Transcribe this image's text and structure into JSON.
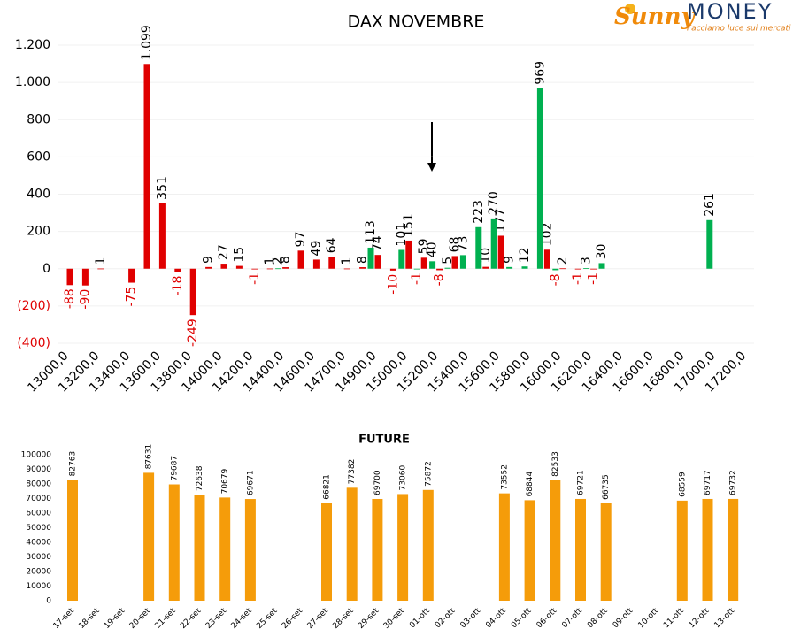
{
  "logo": {
    "brand": "Sunny",
    "name": "MONEY",
    "tagline": "Facciamo luce sui mercati"
  },
  "chart_data": [
    {
      "type": "bar",
      "title": "DAX NOVEMBRE",
      "categories": [
        "13000,0",
        null,
        "13200,0",
        null,
        "13400,0",
        null,
        "13600,0",
        null,
        "13800,0",
        null,
        "14000,0",
        null,
        "14200,0",
        null,
        "14400,0",
        null,
        "14600,0",
        null,
        "14700,0",
        null,
        "14900,0",
        null,
        "15000,0",
        null,
        "15200,0",
        null,
        "15400,0",
        null,
        "15600,0",
        null,
        "15800,0",
        null,
        "16000,0",
        null,
        "16200,0",
        null,
        "16400,0",
        null,
        "16600,0",
        null,
        "16800,0",
        null,
        "17000,0",
        null,
        "17200,0"
      ],
      "series": [
        {
          "color": "#e00000",
          "values": [
            -88,
            -90,
            1,
            null,
            -75,
            1099,
            351,
            -18,
            -249,
            9,
            27,
            15,
            -1,
            1,
            8,
            97,
            49,
            64,
            1,
            8,
            74,
            -10,
            151,
            59,
            -8,
            68,
            null,
            10,
            177,
            null,
            null,
            102,
            2,
            -1,
            -1,
            null,
            null,
            null,
            null,
            null,
            null,
            null,
            null,
            null,
            null
          ],
          "value_labels": [
            "-88",
            "-90",
            "1",
            null,
            "-75",
            "1.099",
            "351",
            "-18",
            "-249",
            "9",
            "27",
            "15",
            "-1",
            "1",
            "8",
            "97",
            "49",
            "64",
            "1",
            "8",
            "74",
            "-10",
            "151",
            "59",
            "-8",
            "68",
            null,
            "10",
            "177",
            null,
            null,
            "102",
            "2",
            "-1",
            "-1",
            null,
            null,
            null,
            null,
            null,
            null,
            null,
            null,
            null,
            null
          ]
        },
        {
          "color": "#00b050",
          "values": [
            null,
            null,
            null,
            null,
            null,
            null,
            null,
            null,
            null,
            null,
            null,
            null,
            null,
            null,
            2,
            null,
            null,
            null,
            null,
            null,
            113,
            null,
            101,
            -1,
            40,
            5,
            73,
            223,
            270,
            9,
            12,
            969,
            -8,
            null,
            3,
            30,
            null,
            null,
            null,
            null,
            null,
            null,
            261,
            null,
            null
          ]
        }
      ],
      "ylim": [
        -400,
        1200
      ],
      "yticks": [
        {
          "value": 1200,
          "label": "1.200"
        },
        {
          "value": 1000,
          "label": "1.000"
        },
        800,
        600,
        400,
        200,
        0,
        {
          "value": -200,
          "label": "(200)"
        },
        {
          "value": -400,
          "label": "(400)"
        }
      ],
      "grid": true,
      "negative_color": "#e00000"
    },
    {
      "type": "bar",
      "title": "FUTURE",
      "categories": [
        "17-set",
        "18-set",
        "19-set",
        "20-set",
        "21-set",
        "22-set",
        "23-set",
        "24-set",
        "25-set",
        "26-set",
        "27-set",
        "28-set",
        "29-set",
        "30-set",
        "01-ott",
        "02-ott",
        "03-ott",
        "04-ott",
        "05-ott",
        "06-ott",
        "07-ott",
        "08-ott",
        "09-ott",
        "10-ott",
        "11-ott",
        "12-ott",
        "13-ott"
      ],
      "values": [
        82763,
        null,
        null,
        87631,
        79687,
        72638,
        70679,
        69671,
        null,
        null,
        66821,
        77382,
        69700,
        73060,
        75872,
        null,
        null,
        73552,
        68844,
        82533,
        69721,
        66735,
        null,
        null,
        68559,
        69717,
        69732
      ],
      "color": "#f59c0a",
      "ylim": [
        0,
        100000
      ],
      "yticks": [
        0,
        10000,
        20000,
        30000,
        40000,
        50000,
        60000,
        70000,
        80000,
        90000,
        100000
      ],
      "grid": false
    }
  ]
}
